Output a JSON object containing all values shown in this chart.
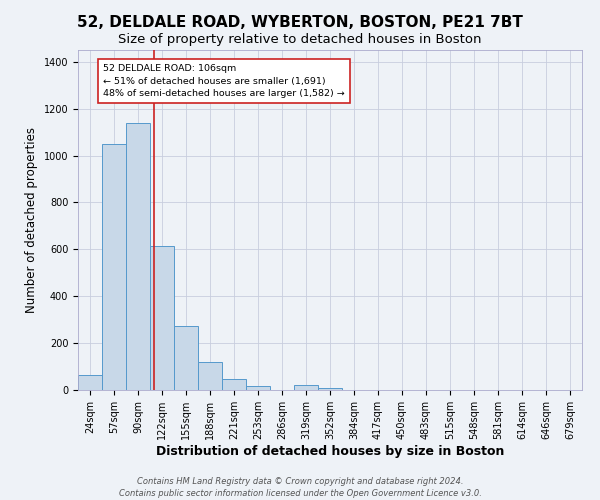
{
  "title": "52, DELDALE ROAD, WYBERTON, BOSTON, PE21 7BT",
  "subtitle": "Size of property relative to detached houses in Boston",
  "xlabel": "Distribution of detached houses by size in Boston",
  "ylabel": "Number of detached properties",
  "categories": [
    "24sqm",
    "57sqm",
    "90sqm",
    "122sqm",
    "155sqm",
    "188sqm",
    "221sqm",
    "253sqm",
    "286sqm",
    "319sqm",
    "352sqm",
    "384sqm",
    "417sqm",
    "450sqm",
    "483sqm",
    "515sqm",
    "548sqm",
    "581sqm",
    "614sqm",
    "646sqm",
    "679sqm"
  ],
  "values": [
    65,
    1050,
    1140,
    615,
    275,
    118,
    47,
    18,
    0,
    20,
    10,
    0,
    0,
    0,
    0,
    0,
    0,
    0,
    0,
    0,
    0
  ],
  "bar_color": "#c8d8e8",
  "bar_edge_color": "#5599cc",
  "bg_color": "#eef2f7",
  "grid_color": "#c8cede",
  "vline_x": 2.67,
  "vline_color": "#cc2222",
  "annotation_text": "52 DELDALE ROAD: 106sqm\n← 51% of detached houses are smaller (1,691)\n48% of semi-detached houses are larger (1,582) →",
  "annotation_box_color": "#ffffff",
  "annotation_box_edge": "#cc2222",
  "footer": "Contains HM Land Registry data © Crown copyright and database right 2024.\nContains public sector information licensed under the Open Government Licence v3.0.",
  "ylim": [
    0,
    1450
  ],
  "title_fontsize": 11,
  "subtitle_fontsize": 9.5,
  "xlabel_fontsize": 9,
  "ylabel_fontsize": 8.5,
  "tick_fontsize": 7,
  "footer_fontsize": 6
}
